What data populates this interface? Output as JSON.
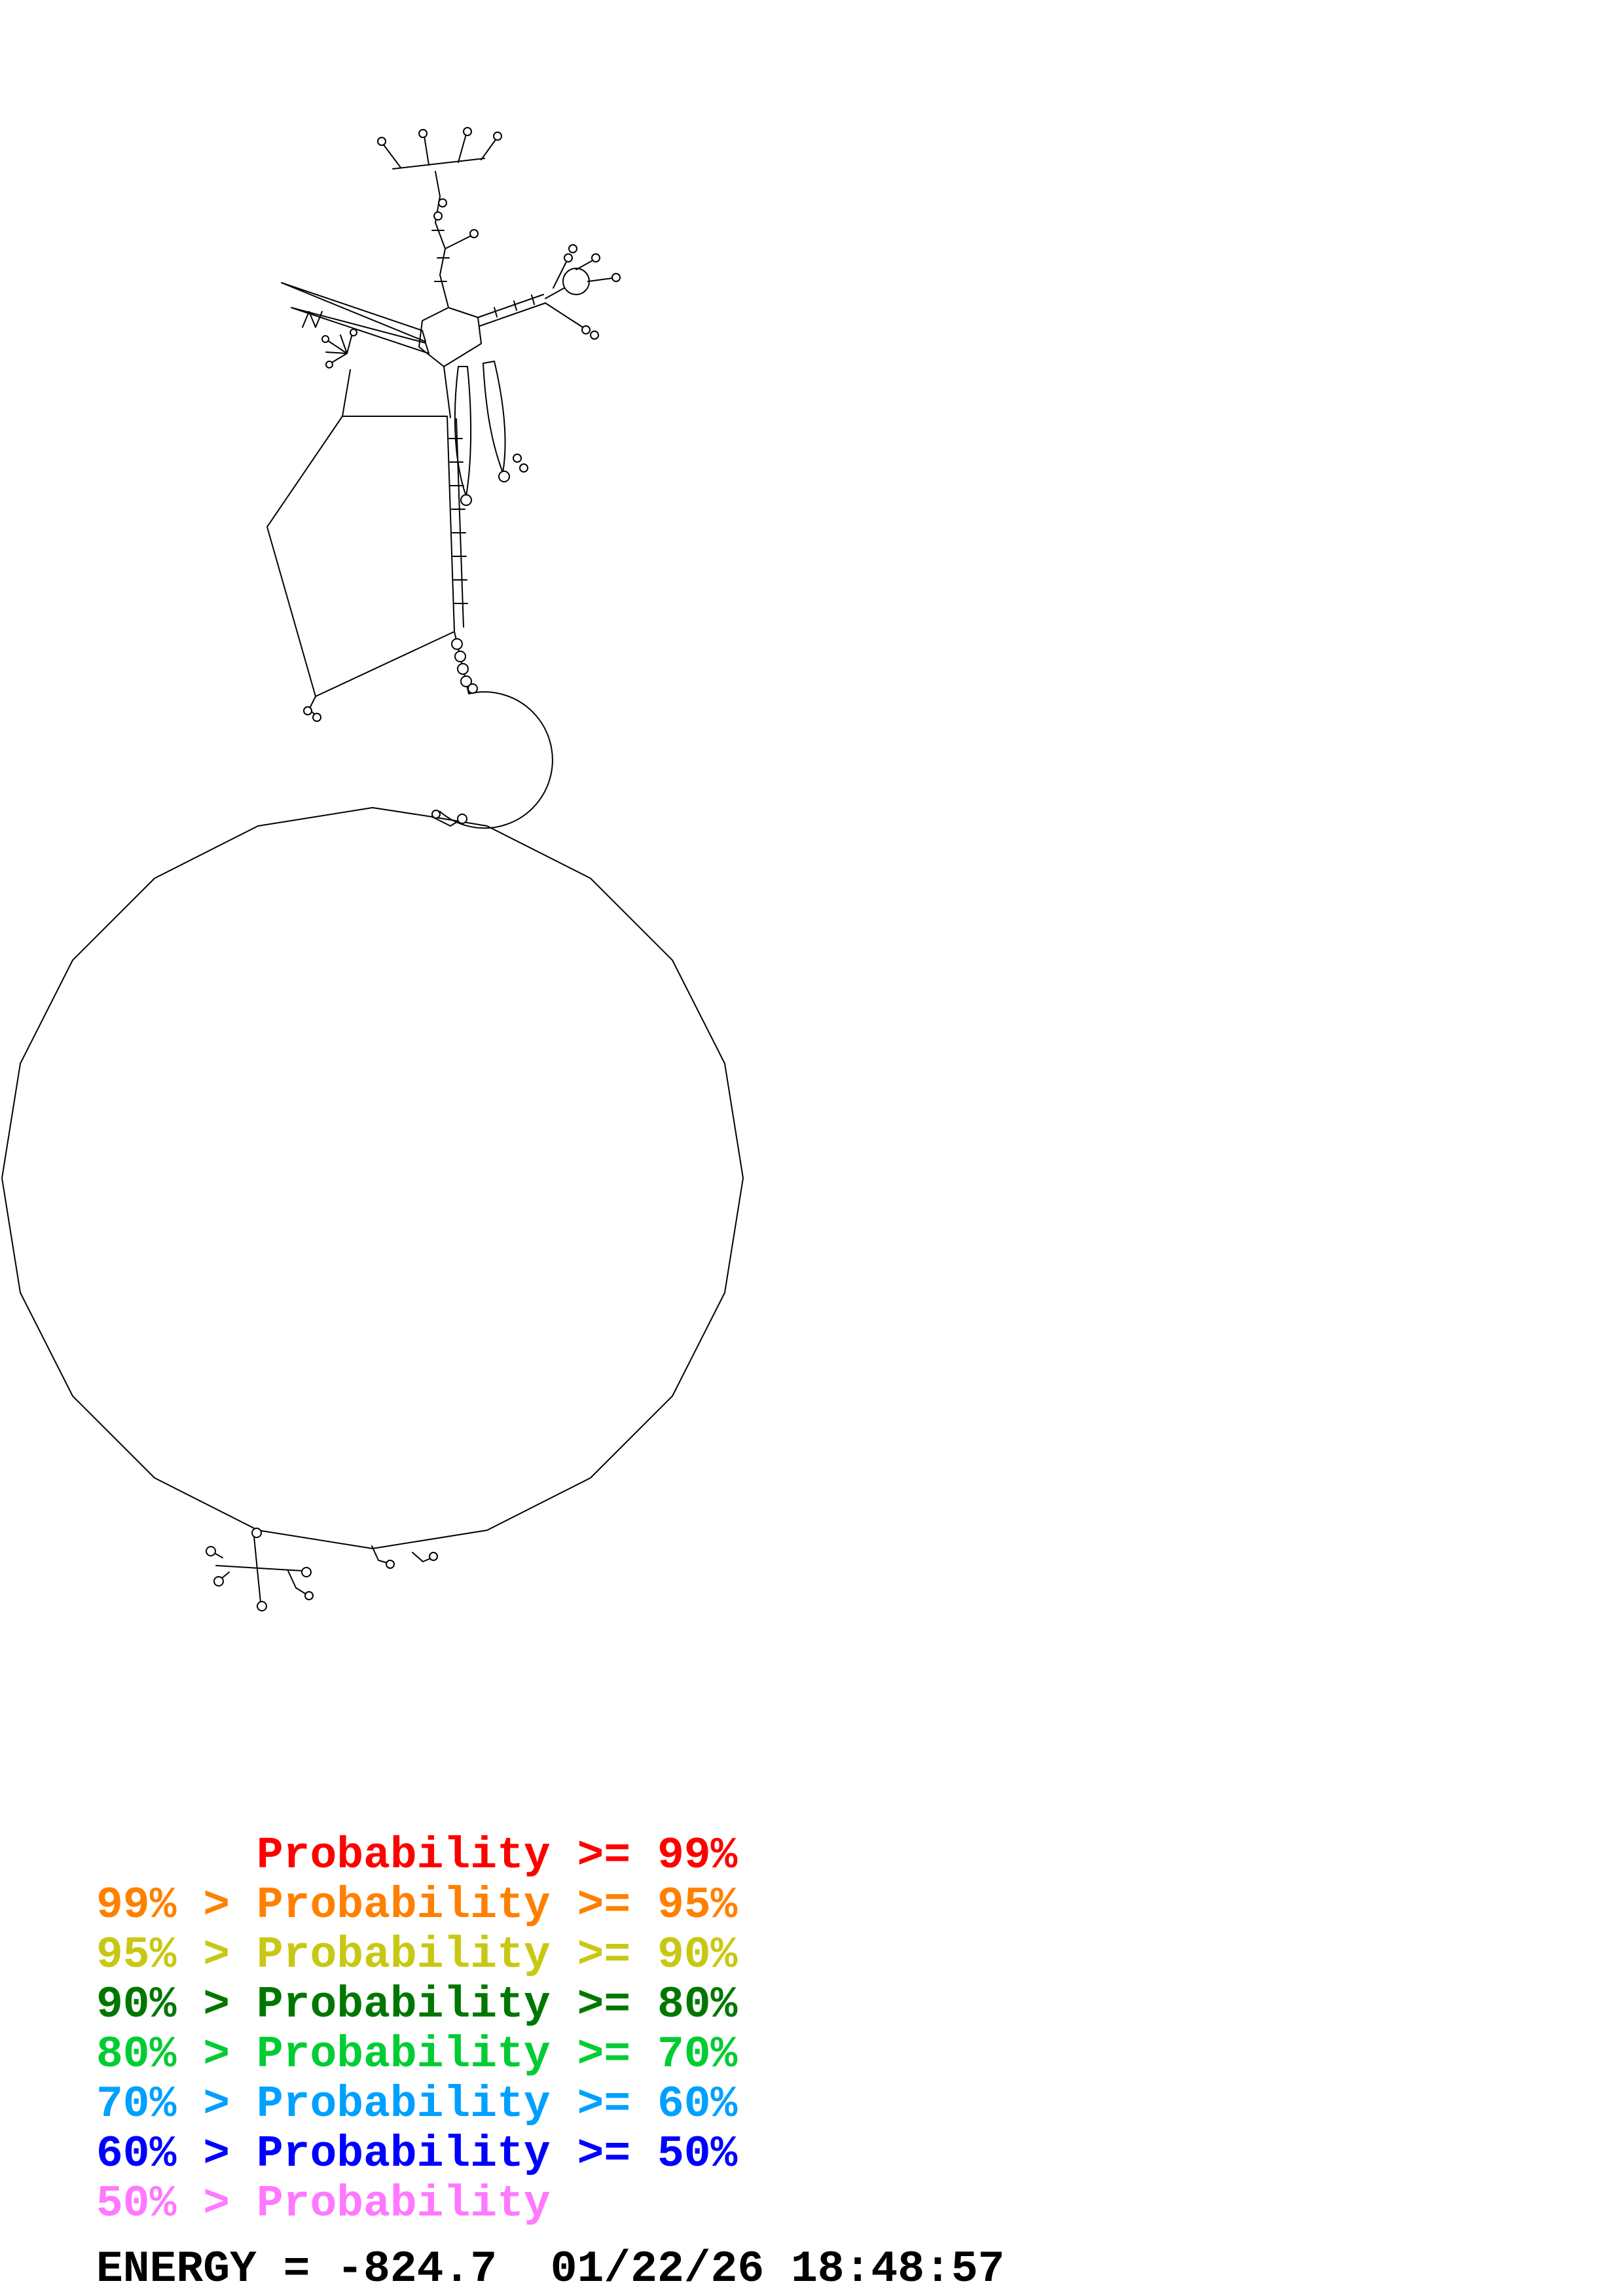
{
  "legend": {
    "entries": [
      {
        "text": "      Probability >= 99%",
        "color": "#ff0000"
      },
      {
        "text": "99% > Probability >= 95%",
        "color": "#ff8000"
      },
      {
        "text": "95% > Probability >= 90%",
        "color": "#c8c814"
      },
      {
        "text": "90% > Probability >= 80%",
        "color": "#007700"
      },
      {
        "text": "80% > Probability >= 70%",
        "color": "#00cc33"
      },
      {
        "text": "70% > Probability >= 60%",
        "color": "#00a0ff"
      },
      {
        "text": "60% > Probability >= 50%",
        "color": "#0000ff"
      },
      {
        "text": "50% > Probability",
        "color": "#ff78ff"
      }
    ]
  },
  "footer": {
    "energy_text": "ENERGY = -824.7  01/22/26 18:48:57"
  },
  "diagram": {
    "stroke": "#000000",
    "background": "#ffffff"
  }
}
